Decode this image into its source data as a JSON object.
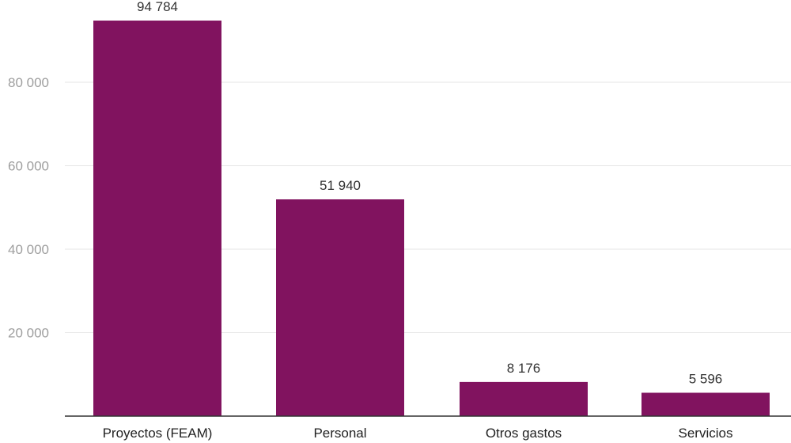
{
  "chart_data": {
    "type": "bar",
    "title": "",
    "xlabel": "",
    "ylabel": "",
    "categories": [
      "Proyectos (FEAM)",
      "Personal",
      "Otros gastos",
      "Servicios"
    ],
    "values": [
      94784,
      51940,
      8176,
      5596
    ],
    "value_labels": [
      "94 784",
      "51 940",
      "8 176",
      "5 596"
    ],
    "ylim": [
      0,
      100000
    ],
    "yticks": [
      20000,
      40000,
      60000,
      80000
    ],
    "ytick_labels": [
      "20 000",
      "40 000",
      "60 000",
      "80 000"
    ],
    "grid": true,
    "legend": "none",
    "bar_color": "#81135f"
  }
}
